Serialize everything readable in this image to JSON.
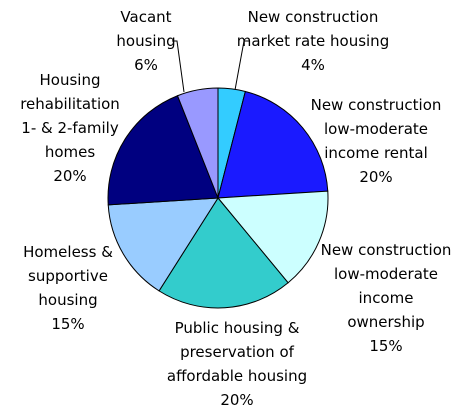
{
  "chart_data": {
    "type": "pie",
    "categories": [
      "New construction\nmarket rate housing",
      "New construction\nlow-moderate\nincome rental",
      "New construction\nlow-moderate\nincome\nownership",
      "Public housing &\npreservation of\naffordable housing",
      "Homeless &\nsupportive\nhousing",
      "Housing\nrehabilitation\n1- & 2-family\nhomes",
      "Vacant\nhousing"
    ],
    "values": [
      4,
      20,
      15,
      20,
      15,
      20,
      6
    ],
    "value_labels": [
      "4%",
      "20%",
      "15%",
      "20%",
      "15%",
      "20%",
      "6%"
    ],
    "colors": [
      "#33ccff",
      "#1a1aff",
      "#ccffff",
      "#33cccc",
      "#99ccff",
      "#000080",
      "#9999ff"
    ]
  }
}
